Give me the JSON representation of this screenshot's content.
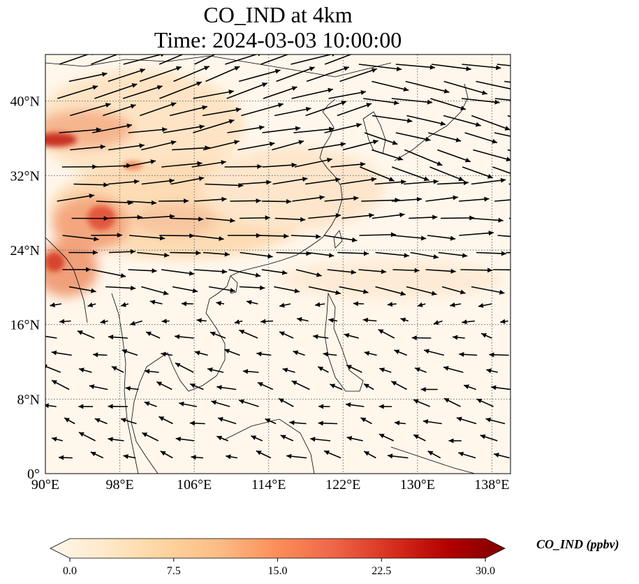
{
  "title": {
    "line1": "CO_IND at 4km",
    "line2": "Time: 2024-03-03 10:00:00"
  },
  "map": {
    "lon_range": [
      90,
      140
    ],
    "lat_range": [
      0,
      45
    ],
    "lon_ticks": [
      "90°E",
      "98°E",
      "106°E",
      "114°E",
      "122°E",
      "130°E",
      "138°E"
    ],
    "lat_ticks": [
      "0°",
      "8°N",
      "16°N",
      "24°N",
      "32°N",
      "40°N"
    ],
    "gridlines": "dotted",
    "field": "CO_IND concentration with wind vectors",
    "wind": "westerly north of about 20°N, easterly/north-easterly south of about 18°N"
  },
  "colorbar": {
    "label": "CO_IND (ppbv)",
    "ticks": [
      "0.0",
      "7.5",
      "15.0",
      "22.5",
      "30.0"
    ],
    "range": [
      0,
      30
    ],
    "colormap": "OrRd",
    "extend": "both",
    "colors": [
      "#fff7ec",
      "#fee8c8",
      "#fdd49e",
      "#fdbb84",
      "#fc8d59",
      "#ef6548",
      "#d7301f",
      "#b30000",
      "#7f0000"
    ]
  }
}
